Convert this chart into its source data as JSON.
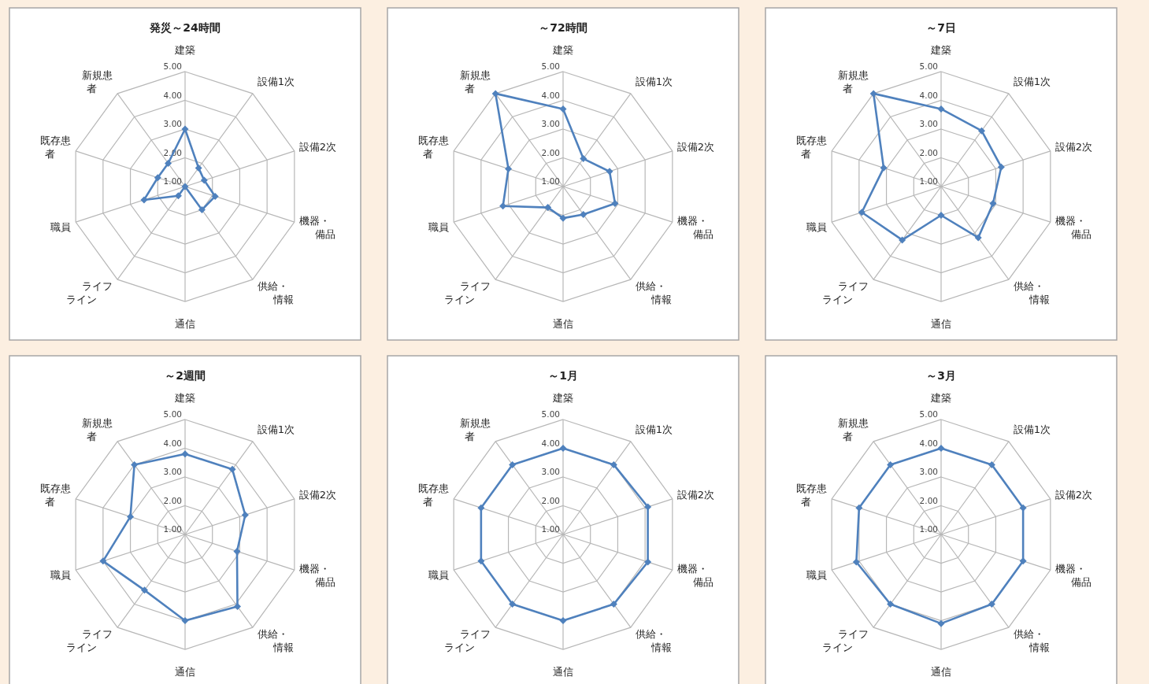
{
  "chart_data": [
    {
      "type": "radar",
      "title": "発災～24時間",
      "categories": [
        "建築",
        "設備1次",
        "設備2次",
        "機器・備品",
        "供給・情報",
        "通信",
        "ライフライン",
        "職員",
        "既存患者",
        "新規患者"
      ],
      "series": [
        {
          "color": "#4f81bd",
          "values": [
            3.0,
            1.8,
            1.7,
            2.1,
            2.0,
            1.0,
            1.4,
            2.5,
            2.0,
            2.0
          ]
        }
      ],
      "ylim": [
        1,
        5
      ],
      "yticks": [
        {
          "value": 1,
          "label": "1.00"
        },
        {
          "value": 2,
          "label": "2.00"
        },
        {
          "value": 3,
          "label": "3.00"
        },
        {
          "value": 4,
          "label": "4.00"
        },
        {
          "value": 5,
          "label": "5.00"
        }
      ],
      "grid": true,
      "marker": "diamond"
    },
    {
      "type": "radar",
      "title": "～72時間",
      "categories": [
        "建築",
        "設備1次",
        "設備2次",
        "機器・備品",
        "供給・情報",
        "通信",
        "ライフライン",
        "職員",
        "既存患者",
        "新規患者"
      ],
      "series": [
        {
          "color": "#4f81bd",
          "values": [
            3.7,
            2.2,
            2.7,
            2.9,
            2.2,
            2.1,
            1.9,
            3.2,
            3.0,
            5.0
          ]
        }
      ],
      "ylim": [
        1,
        5
      ],
      "yticks": [
        {
          "value": 1,
          "label": "1.00"
        },
        {
          "value": 2,
          "label": "2.00"
        },
        {
          "value": 3,
          "label": "3.00"
        },
        {
          "value": 4,
          "label": "4.00"
        },
        {
          "value": 5,
          "label": "5.00"
        }
      ],
      "grid": true,
      "marker": "diamond"
    },
    {
      "type": "radar",
      "title": "～7日",
      "categories": [
        "建築",
        "設備1次",
        "設備2次",
        "機器・備品",
        "供給・情報",
        "通信",
        "ライフライン",
        "職員",
        "既存患者",
        "新規患者"
      ],
      "series": [
        {
          "color": "#4f81bd",
          "values": [
            3.7,
            3.4,
            3.2,
            2.9,
            3.2,
            2.0,
            3.3,
            3.9,
            3.1,
            5.0
          ]
        }
      ],
      "ylim": [
        1,
        5
      ],
      "yticks": [
        {
          "value": 1,
          "label": "1.00"
        },
        {
          "value": 2,
          "label": "2.00"
        },
        {
          "value": 3,
          "label": "3.00"
        },
        {
          "value": 4,
          "label": "4.00"
        },
        {
          "value": 5,
          "label": "5.00"
        }
      ],
      "grid": true,
      "marker": "diamond"
    },
    {
      "type": "radar",
      "title": "～2週間",
      "categories": [
        "建築",
        "設備1次",
        "設備2次",
        "機器・備品",
        "供給・情報",
        "通信",
        "ライフライン",
        "職員",
        "既存患者",
        "新規患者"
      ],
      "series": [
        {
          "color": "#4f81bd",
          "values": [
            3.8,
            3.8,
            3.2,
            2.9,
            4.1,
            4.0,
            3.4,
            4.0,
            3.0,
            4.0
          ]
        }
      ],
      "ylim": [
        1,
        5
      ],
      "yticks": [
        {
          "value": 1,
          "label": "1.00"
        },
        {
          "value": 2,
          "label": "2.00"
        },
        {
          "value": 3,
          "label": "3.00"
        },
        {
          "value": 4,
          "label": "4.00"
        },
        {
          "value": 5,
          "label": "5.00"
        }
      ],
      "grid": true,
      "marker": "diamond"
    },
    {
      "type": "radar",
      "title": "～1月",
      "categories": [
        "建築",
        "設備1次",
        "設備2次",
        "機器・備品",
        "供給・情報",
        "通信",
        "ライフライン",
        "職員",
        "既存患者",
        "新規患者"
      ],
      "series": [
        {
          "color": "#4f81bd",
          "values": [
            4.0,
            4.0,
            4.1,
            4.1,
            4.0,
            4.0,
            4.0,
            4.0,
            4.0,
            4.0
          ]
        }
      ],
      "ylim": [
        1,
        5
      ],
      "yticks": [
        {
          "value": 1,
          "label": "1.00"
        },
        {
          "value": 2,
          "label": "2.00"
        },
        {
          "value": 3,
          "label": "3.00"
        },
        {
          "value": 4,
          "label": "4.00"
        },
        {
          "value": 5,
          "label": "5.00"
        }
      ],
      "grid": true,
      "marker": "diamond"
    },
    {
      "type": "radar",
      "title": "～3月",
      "categories": [
        "建築",
        "設備1次",
        "設備2次",
        "機器・備品",
        "供給・情報",
        "通信",
        "ライフライン",
        "職員",
        "既存患者",
        "新規患者"
      ],
      "series": [
        {
          "color": "#4f81bd",
          "values": [
            4.0,
            4.0,
            4.0,
            4.0,
            4.0,
            4.1,
            4.0,
            4.1,
            4.0,
            4.0
          ]
        }
      ],
      "ylim": [
        1,
        5
      ],
      "yticks": [
        {
          "value": 1,
          "label": "1.00"
        },
        {
          "value": 2,
          "label": "2.00"
        },
        {
          "value": 3,
          "label": "3.00"
        },
        {
          "value": 4,
          "label": "4.00"
        },
        {
          "value": 5,
          "label": "5.00"
        }
      ],
      "grid": true,
      "marker": "diamond"
    }
  ]
}
